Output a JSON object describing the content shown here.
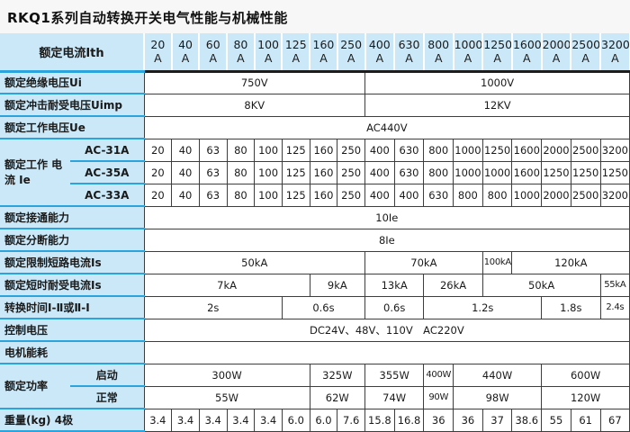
{
  "title": "RKQ1系列自动转换开关电气性能与机械性能",
  "colors": {
    "header_bg": "#cbe8f8",
    "accent_line": "#2ba3dc",
    "grid_line": "#3d3d3d",
    "text": "#1a1a1a"
  },
  "table": {
    "header_label": "额定电流Ith",
    "unit": "A",
    "current_ratings": [
      "20",
      "40",
      "60",
      "80",
      "100",
      "125",
      "160",
      "250",
      "400",
      "630",
      "800",
      "1000",
      "1250",
      "1600",
      "2000",
      "2500",
      "3200"
    ],
    "rows": [
      {
        "label": "额定绝缘电压Ui",
        "cells": [
          {
            "t": "750V",
            "s": 8
          },
          {
            "t": "1000V",
            "s": 9
          }
        ]
      },
      {
        "label": "额定冲击耐受电压Uimp",
        "cells": [
          {
            "t": "8KV",
            "s": 8
          },
          {
            "t": "12KV",
            "s": 9
          }
        ]
      },
      {
        "label": "额定工作电压Ue",
        "cells": [
          {
            "t": "AC440V",
            "s": 17
          }
        ]
      },
      {
        "group": "额定工作 电流 Ie",
        "rowspan": 3,
        "sublabel": "AC-31A",
        "cells": [
          "20",
          "40",
          "63",
          "80",
          "100",
          "125",
          "160",
          "250",
          "400",
          "630",
          "800",
          "1000",
          "1250",
          "1600",
          "2000",
          "2500",
          "3200"
        ]
      },
      {
        "sublabel": "AC-35A",
        "cells": [
          "20",
          "40",
          "63",
          "80",
          "100",
          "125",
          "160",
          "250",
          "400",
          "630",
          "800",
          "1000",
          "1000",
          "1600",
          "1250",
          "1250",
          "1250"
        ]
      },
      {
        "sublabel": "AC-33A",
        "cells": [
          "20",
          "40",
          "63",
          "80",
          "100",
          "125",
          "160",
          "250",
          "400",
          "400",
          "630",
          "800",
          "800",
          "1000",
          "2000",
          "2500",
          "3200"
        ]
      },
      {
        "label": "额定接通能力",
        "cells": [
          {
            "t": "10Ie",
            "s": 17
          }
        ]
      },
      {
        "label": "额定分断能力",
        "cells": [
          {
            "t": "8Ie",
            "s": 17
          }
        ]
      },
      {
        "label": "额定限制短路电流Is",
        "cells": [
          {
            "t": "50kA",
            "s": 8
          },
          {
            "t": "70kA",
            "s": 4
          },
          {
            "t": "100kA",
            "s": 1,
            "sm": 1
          },
          {
            "t": "120kA",
            "s": 4
          }
        ]
      },
      {
        "label": "额定短时耐受电流Is",
        "cells": [
          {
            "t": "7kA",
            "s": 6
          },
          {
            "t": "9kA",
            "s": 2
          },
          {
            "t": "13kA",
            "s": 2
          },
          {
            "t": "26kA",
            "s": 2
          },
          {
            "t": "50kA",
            "s": 4
          },
          {
            "t": "55kA",
            "s": 1,
            "sm": 1
          }
        ]
      },
      {
        "label": "转换时间Ⅰ-Ⅱ或Ⅱ-Ⅰ",
        "cells": [
          {
            "t": "2s",
            "s": 5
          },
          {
            "t": "0.6s",
            "s": 3
          },
          {
            "t": "0.6s",
            "s": 2
          },
          {
            "t": "1.2s",
            "s": 4
          },
          {
            "t": "1.8s",
            "s": 2
          },
          {
            "t": "2.4s",
            "s": 1,
            "sm": 1
          }
        ]
      },
      {
        "label": "控制电压",
        "cells": [
          {
            "t": "DC24V、48V、110V　AC220V",
            "s": 17
          }
        ]
      },
      {
        "label": "电机能耗",
        "cells": [
          {
            "t": "",
            "s": 17
          }
        ]
      },
      {
        "group": "额定功率",
        "rowspan": 2,
        "sublabel": "启动",
        "cells": [
          {
            "t": "300W",
            "s": 6
          },
          {
            "t": "325W",
            "s": 2
          },
          {
            "t": "355W",
            "s": 2
          },
          {
            "t": "400W",
            "s": 1,
            "sm": 1
          },
          {
            "t": "440W",
            "s": 3
          },
          {
            "t": "600W",
            "s": 3
          }
        ]
      },
      {
        "sublabel": "正常",
        "cells": [
          {
            "t": "55W",
            "s": 6
          },
          {
            "t": "62W",
            "s": 2
          },
          {
            "t": "74W",
            "s": 2
          },
          {
            "t": "90W",
            "s": 1,
            "sm": 1
          },
          {
            "t": "98W",
            "s": 3
          },
          {
            "t": "120W",
            "s": 3
          }
        ]
      },
      {
        "label": "重量(kg) 4极",
        "cells": [
          "3.4",
          "3.4",
          "3.4",
          "3.4",
          "3.4",
          "6.0",
          "6.0",
          "7.6",
          "15.8",
          "16.8",
          "36",
          "36",
          "37",
          "38.6",
          "55",
          "61",
          "67"
        ]
      }
    ]
  }
}
